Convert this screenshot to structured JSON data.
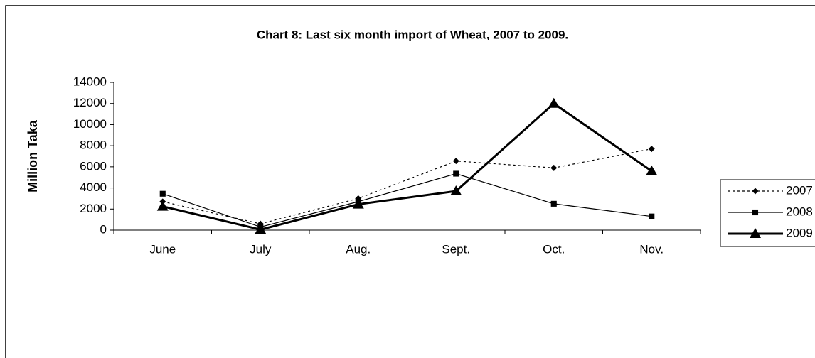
{
  "chart_data": {
    "type": "line",
    "title": "Chart 8: Last six month import of Wheat, 2007 to 2009.",
    "y_label": "Million Taka",
    "categories": [
      "June",
      "July",
      "Aug.",
      "Sept.",
      "Oct.",
      "Nov."
    ],
    "series": [
      {
        "name": "2007",
        "color": "#000000",
        "marker": "diamond",
        "dash": "dotted",
        "line_width": 1.2,
        "values": [
          2700,
          600,
          3000,
          6550,
          5900,
          7700
        ]
      },
      {
        "name": "2008",
        "color": "#000000",
        "marker": "square",
        "dash": "solid",
        "line_width": 1.2,
        "values": [
          3450,
          300,
          2700,
          5350,
          2500,
          1300
        ]
      },
      {
        "name": "2009",
        "color": "#000000",
        "marker": "triangle",
        "dash": "solid",
        "line_width": 3,
        "values": [
          2250,
          50,
          2450,
          3700,
          12000,
          5600
        ]
      }
    ],
    "ylim": [
      0,
      14000
    ],
    "yticks": [
      0,
      2000,
      4000,
      6000,
      8000,
      10000,
      12000,
      14000
    ],
    "grid": false,
    "legend": "right"
  }
}
